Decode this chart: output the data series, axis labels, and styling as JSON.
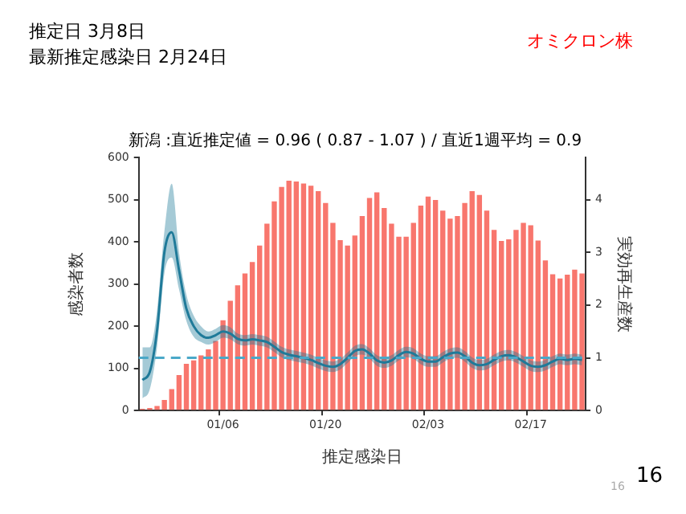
{
  "chart_data": {
    "type": "bar",
    "title": "新潟 :直近推定値 = 0.96 ( 0.87 - 1.07 ) / 直近1週平均 = 0.9",
    "xlabel": "推定感染日",
    "ylabel": "感染者数",
    "y2label": "実効再生産数",
    "categories": [
      null,
      null,
      null,
      null,
      null,
      null,
      null,
      null,
      null,
      null,
      null,
      "01/06",
      null,
      null,
      null,
      null,
      null,
      null,
      null,
      null,
      null,
      null,
      null,
      null,
      null,
      "01/20",
      null,
      null,
      null,
      null,
      null,
      null,
      null,
      null,
      null,
      null,
      null,
      null,
      null,
      "02/03",
      null,
      null,
      null,
      null,
      null,
      null,
      null,
      null,
      null,
      null,
      null,
      null,
      null,
      "02/17",
      null,
      null,
      null,
      null,
      null,
      null,
      null
    ],
    "series": [
      {
        "color": "#f8766d",
        "values": [
          4,
          6,
          11,
          25,
          51,
          84,
          111,
          119,
          131,
          145,
          165,
          214,
          260,
          297,
          325,
          352,
          391,
          443,
          496,
          530,
          545,
          543,
          538,
          533,
          520,
          492,
          445,
          404,
          391,
          415,
          461,
          504,
          517,
          480,
          443,
          412,
          412,
          445,
          486,
          507,
          499,
          474,
          455,
          461,
          492,
          520,
          511,
          474,
          428,
          402,
          406,
          428,
          445,
          439,
          403,
          356,
          323,
          313,
          322,
          334,
          325
        ]
      },
      {
        "type": "line",
        "axis": "y2",
        "color": "#1f7a99",
        "values": [
          0.58,
          0.73,
          1.52,
          3.0,
          3.38,
          2.66,
          1.93,
          1.6,
          1.43,
          1.38,
          1.43,
          1.5,
          1.46,
          1.36,
          1.33,
          1.35,
          1.33,
          1.3,
          1.21,
          1.11,
          1.06,
          1.03,
          1.0,
          0.96,
          0.9,
          0.85,
          0.83,
          0.88,
          1.0,
          1.13,
          1.16,
          1.08,
          0.95,
          0.91,
          0.95,
          1.05,
          1.11,
          1.08,
          0.98,
          0.93,
          0.93,
          1.01,
          1.08,
          1.1,
          1.03,
          0.91,
          0.86,
          0.88,
          0.96,
          1.03,
          1.05,
          1.01,
          0.93,
          0.85,
          0.83,
          0.86,
          0.93,
          0.98,
          0.96,
          0.98,
          0.96
        ],
        "lower": [
          0.23,
          0.4,
          1.2,
          2.6,
          2.9,
          2.3,
          1.7,
          1.4,
          1.3,
          1.25,
          1.3,
          1.38,
          1.35,
          1.26,
          1.23,
          1.25,
          1.23,
          1.2,
          1.11,
          1.01,
          0.96,
          0.93,
          0.9,
          0.86,
          0.8,
          0.75,
          0.73,
          0.78,
          0.9,
          1.03,
          1.06,
          0.98,
          0.85,
          0.81,
          0.85,
          0.95,
          1.01,
          0.98,
          0.88,
          0.83,
          0.83,
          0.91,
          0.98,
          1.0,
          0.93,
          0.81,
          0.76,
          0.78,
          0.86,
          0.93,
          0.95,
          0.91,
          0.83,
          0.75,
          0.73,
          0.76,
          0.83,
          0.88,
          0.86,
          0.88,
          0.86
        ],
        "upper": [
          1.2,
          1.2,
          1.9,
          3.4,
          4.3,
          3.0,
          2.2,
          1.8,
          1.6,
          1.5,
          1.55,
          1.62,
          1.58,
          1.46,
          1.43,
          1.45,
          1.43,
          1.4,
          1.31,
          1.21,
          1.16,
          1.13,
          1.1,
          1.06,
          1.0,
          0.95,
          0.93,
          0.98,
          1.1,
          1.23,
          1.26,
          1.18,
          1.05,
          1.01,
          1.05,
          1.15,
          1.21,
          1.18,
          1.08,
          1.03,
          1.03,
          1.11,
          1.18,
          1.2,
          1.13,
          1.01,
          0.96,
          0.98,
          1.06,
          1.13,
          1.15,
          1.11,
          1.03,
          0.95,
          0.93,
          0.96,
          1.03,
          1.08,
          1.06,
          1.08,
          1.06
        ]
      }
    ],
    "ylim": [
      0,
      600
    ],
    "yticks": [
      0,
      100,
      200,
      300,
      400,
      500,
      600
    ],
    "y2lim": [
      0,
      4.8
    ],
    "y2ticks": [
      0,
      1,
      2,
      3,
      4
    ],
    "ref_lines": [
      {
        "axis": "y2",
        "value": 1,
        "color": "#4aa8c8",
        "line_style": "dashed"
      }
    ],
    "annotations": [
      "推定日  3月8日",
      "最新推定感染日  2月24日",
      "オミクロン株",
      "16",
      "16"
    ],
    "legend": false,
    "grid": false,
    "marker": "none"
  }
}
